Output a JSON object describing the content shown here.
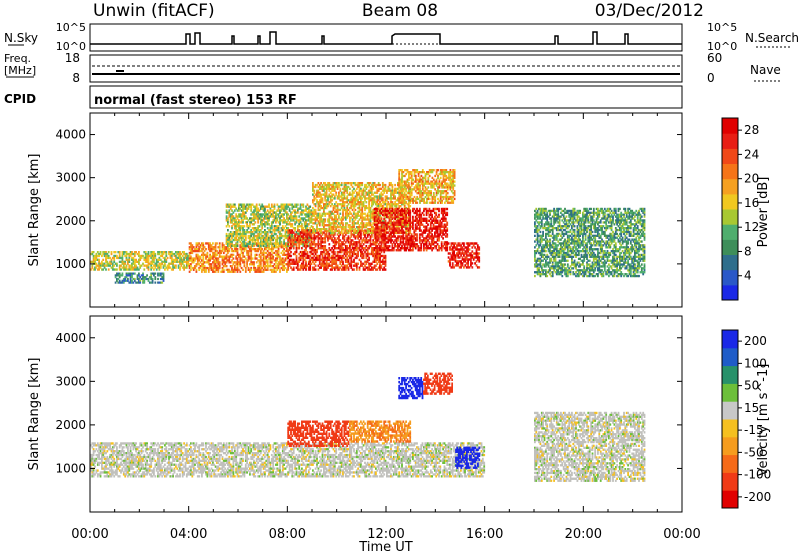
{
  "header": {
    "station": "Unwin (fitACF)",
    "beam": "Beam 08",
    "date": "03/Dec/2012"
  },
  "top_panels": {
    "nsky_label": "N.Sky",
    "nsearch_label": "N.Search",
    "freq_label_1": "Freq.",
    "freq_label_2": "[MHz]",
    "nave_label": "Nave",
    "cpid_label": "CPID",
    "cpid_text": "normal (fast stereo) 153 RF",
    "noise_ticks_left": [
      "10^5",
      "10^0"
    ],
    "noise_ticks_right": [
      "10^5",
      "10^0"
    ],
    "freq_ticks": [
      "18",
      "8"
    ],
    "nave_ticks": [
      "60",
      "0"
    ]
  },
  "colors": {
    "power_scale": [
      "#1a28e6",
      "#2a58c8",
      "#2f6e8c",
      "#3e8e5a",
      "#4fae6e",
      "#a8c832",
      "#f0c820",
      "#f5a020",
      "#f57418",
      "#f04818",
      "#e81e14",
      "#e00000"
    ],
    "velocity_scale": [
      "#1a28e6",
      "#1f5cc8",
      "#28916a",
      "#6cbf3a",
      "#c8c8c8",
      "#f5c020",
      "#f59c1e",
      "#f56a18",
      "#f03a16",
      "#e00000"
    ],
    "ground_scatter": "#c0c0bc"
  },
  "chart_data": [
    {
      "type": "heatmap",
      "name": "power",
      "ylabel": "Slant Range [km]",
      "xlabel": "Time UT",
      "x_ticks": [
        "00:00",
        "04:00",
        "08:00",
        "12:00",
        "16:00",
        "20:00",
        "00:00"
      ],
      "xlim_hours": [
        0,
        24
      ],
      "ylim_km": [
        0,
        4500
      ],
      "y_ticks": [
        1000,
        2000,
        3000,
        4000
      ],
      "colorbar": {
        "label": "Power [dB]",
        "ticks": [
          4,
          8,
          12,
          16,
          20,
          24,
          28
        ],
        "range": [
          0,
          30
        ]
      },
      "regions": [
        {
          "t0": 0.0,
          "t1": 4.0,
          "r0": 850,
          "r1": 1300,
          "value": 15
        },
        {
          "t0": 1.0,
          "t1": 3.0,
          "r0": 550,
          "r1": 800,
          "value": 8
        },
        {
          "t0": 4.0,
          "t1": 8.0,
          "r0": 800,
          "r1": 1500,
          "value": 20
        },
        {
          "t0": 5.5,
          "t1": 9.0,
          "r0": 1400,
          "r1": 2400,
          "value": 14
        },
        {
          "t0": 8.0,
          "t1": 12.0,
          "r0": 850,
          "r1": 1800,
          "value": 25
        },
        {
          "t0": 9.0,
          "t1": 13.0,
          "r0": 1700,
          "r1": 2900,
          "value": 17
        },
        {
          "t0": 11.5,
          "t1": 14.5,
          "r0": 1300,
          "r1": 2300,
          "value": 27
        },
        {
          "t0": 12.5,
          "t1": 14.8,
          "r0": 2400,
          "r1": 3200,
          "value": 18
        },
        {
          "t0": 14.5,
          "t1": 15.8,
          "r0": 900,
          "r1": 1500,
          "value": 27
        },
        {
          "t0": 18.0,
          "t1": 22.5,
          "r0": 700,
          "r1": 2300,
          "value": 10
        }
      ]
    },
    {
      "type": "heatmap",
      "name": "velocity",
      "ylabel": "Slant Range [km]",
      "xlabel": "Time UT",
      "x_ticks": [
        "00:00",
        "04:00",
        "08:00",
        "12:00",
        "16:00",
        "20:00",
        "00:00"
      ],
      "xlim_hours": [
        0,
        24
      ],
      "ylim_km": [
        0,
        4500
      ],
      "y_ticks": [
        1000,
        2000,
        3000,
        4000
      ],
      "colorbar": {
        "label": "Velocity [m s^-1]",
        "ticks": [
          200,
          100,
          50,
          15,
          -15,
          -50,
          -100,
          -200
        ],
        "range": [
          -250,
          250
        ]
      },
      "regions": [
        {
          "t0": 0.0,
          "t1": 16.0,
          "r0": 800,
          "r1": 1600,
          "value": 0
        },
        {
          "t0": 8.0,
          "t1": 10.5,
          "r0": 1500,
          "r1": 2100,
          "value": -180
        },
        {
          "t0": 10.5,
          "t1": 13.0,
          "r0": 1600,
          "r1": 2100,
          "value": -70
        },
        {
          "t0": 12.5,
          "t1": 13.5,
          "r0": 2600,
          "r1": 3100,
          "value": 180
        },
        {
          "t0": 13.5,
          "t1": 14.7,
          "r0": 2700,
          "r1": 3200,
          "value": -180
        },
        {
          "t0": 14.8,
          "t1": 15.8,
          "r0": 1000,
          "r1": 1500,
          "value": 170
        },
        {
          "t0": 18.0,
          "t1": 22.5,
          "r0": 700,
          "r1": 2300,
          "value": 0
        }
      ]
    }
  ]
}
